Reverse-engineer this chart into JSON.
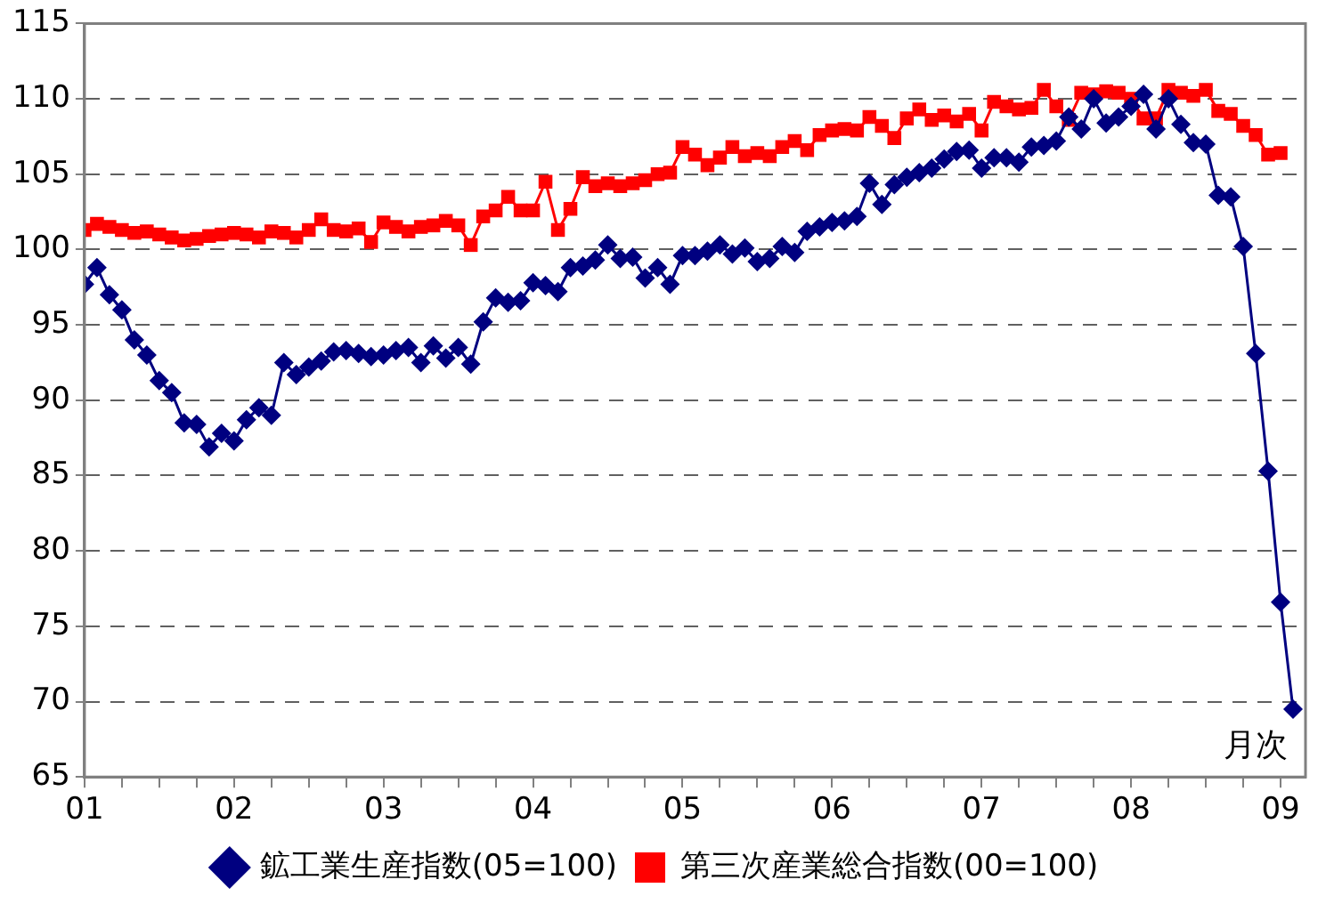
{
  "chart_data": {
    "type": "line",
    "annotations": [
      "月次"
    ],
    "xlim": [
      "2001-01",
      "2009-03"
    ],
    "xticks": [
      {
        "value": "2001-01",
        "label": "01"
      },
      {
        "value": "2001-04",
        "label": null
      },
      {
        "value": "2001-07",
        "label": null
      },
      {
        "value": "2001-10",
        "label": null
      },
      {
        "value": "2002-01",
        "label": "02"
      },
      {
        "value": "2002-04",
        "label": null
      },
      {
        "value": "2002-07",
        "label": null
      },
      {
        "value": "2002-10",
        "label": null
      },
      {
        "value": "2003-01",
        "label": "03"
      },
      {
        "value": "2003-04",
        "label": null
      },
      {
        "value": "2003-07",
        "label": null
      },
      {
        "value": "2003-10",
        "label": null
      },
      {
        "value": "2004-01",
        "label": "04"
      },
      {
        "value": "2004-04",
        "label": null
      },
      {
        "value": "2004-07",
        "label": null
      },
      {
        "value": "2004-10",
        "label": null
      },
      {
        "value": "2005-01",
        "label": "05"
      },
      {
        "value": "2005-04",
        "label": null
      },
      {
        "value": "2005-07",
        "label": null
      },
      {
        "value": "2005-10",
        "label": null
      },
      {
        "value": "2006-01",
        "label": "06"
      },
      {
        "value": "2006-04",
        "label": null
      },
      {
        "value": "2006-07",
        "label": null
      },
      {
        "value": "2006-10",
        "label": null
      },
      {
        "value": "2007-01",
        "label": "07"
      },
      {
        "value": "2007-04",
        "label": null
      },
      {
        "value": "2007-07",
        "label": null
      },
      {
        "value": "2007-10",
        "label": null
      },
      {
        "value": "2008-01",
        "label": "08"
      },
      {
        "value": "2008-04",
        "label": null
      },
      {
        "value": "2008-07",
        "label": null
      },
      {
        "value": "2008-10",
        "label": null
      },
      {
        "value": "2009-01",
        "label": "09"
      }
    ],
    "ylim": [
      65,
      115
    ],
    "yticks": [
      65,
      70,
      75,
      80,
      85,
      90,
      95,
      100,
      105,
      110,
      115
    ],
    "grid": "y",
    "legend": "bottom",
    "x": [
      "2001-01",
      "2001-02",
      "2001-03",
      "2001-04",
      "2001-05",
      "2001-06",
      "2001-07",
      "2001-08",
      "2001-09",
      "2001-10",
      "2001-11",
      "2001-12",
      "2002-01",
      "2002-02",
      "2002-03",
      "2002-04",
      "2002-05",
      "2002-06",
      "2002-07",
      "2002-08",
      "2002-09",
      "2002-10",
      "2002-11",
      "2002-12",
      "2003-01",
      "2003-02",
      "2003-03",
      "2003-04",
      "2003-05",
      "2003-06",
      "2003-07",
      "2003-08",
      "2003-09",
      "2003-10",
      "2003-11",
      "2003-12",
      "2004-01",
      "2004-02",
      "2004-03",
      "2004-04",
      "2004-05",
      "2004-06",
      "2004-07",
      "2004-08",
      "2004-09",
      "2004-10",
      "2004-11",
      "2004-12",
      "2005-01",
      "2005-02",
      "2005-03",
      "2005-04",
      "2005-05",
      "2005-06",
      "2005-07",
      "2005-08",
      "2005-09",
      "2005-10",
      "2005-11",
      "2005-12",
      "2006-01",
      "2006-02",
      "2006-03",
      "2006-04",
      "2006-05",
      "2006-06",
      "2006-07",
      "2006-08",
      "2006-09",
      "2006-10",
      "2006-11",
      "2006-12",
      "2007-01",
      "2007-02",
      "2007-03",
      "2007-04",
      "2007-05",
      "2007-06",
      "2007-07",
      "2007-08",
      "2007-09",
      "2007-10",
      "2007-11",
      "2007-12",
      "2008-01",
      "2008-02",
      "2008-03",
      "2008-04",
      "2008-05",
      "2008-06",
      "2008-07",
      "2008-08",
      "2008-09",
      "2008-10",
      "2008-11",
      "2008-12",
      "2009-01",
      "2009-02"
    ],
    "series": [
      {
        "name": "鉱工業生産指数(05=100)",
        "color": "#000080",
        "marker": "diamond",
        "values": [
          97.7,
          98.8,
          97.0,
          96.0,
          94.0,
          93.0,
          91.3,
          90.5,
          88.5,
          88.4,
          86.9,
          87.8,
          87.3,
          88.7,
          89.5,
          89.0,
          92.5,
          91.7,
          92.2,
          92.6,
          93.2,
          93.3,
          93.1,
          92.9,
          93.0,
          93.3,
          93.5,
          92.5,
          93.6,
          92.8,
          93.5,
          92.4,
          95.2,
          96.8,
          96.5,
          96.6,
          97.8,
          97.6,
          97.2,
          98.8,
          98.9,
          99.3,
          100.3,
          99.4,
          99.5,
          98.1,
          98.8,
          97.7,
          99.6,
          99.6,
          99.9,
          100.3,
          99.7,
          100.1,
          99.2,
          99.4,
          100.2,
          99.8,
          101.2,
          101.5,
          101.8,
          101.9,
          102.2,
          104.4,
          103.0,
          104.3,
          104.8,
          105.1,
          105.4,
          106.0,
          106.5,
          106.6,
          105.4,
          106.1,
          106.1,
          105.8,
          106.8,
          106.9,
          107.2,
          108.8,
          108.0,
          110.0,
          108.4,
          108.8,
          109.5,
          110.3,
          108.0,
          110.0,
          108.3,
          107.1,
          107.0,
          103.6,
          103.5,
          100.2,
          93.1,
          85.3,
          76.6,
          69.5
        ]
      },
      {
        "name": "第三次産業総合指数(00=100)",
        "color": "#ff0000",
        "marker": "square",
        "values": [
          101.3,
          101.7,
          101.5,
          101.3,
          101.1,
          101.2,
          101.0,
          100.8,
          100.6,
          100.7,
          100.9,
          101.0,
          101.1,
          101.0,
          100.8,
          101.2,
          101.1,
          100.8,
          101.3,
          102.0,
          101.3,
          101.2,
          101.4,
          100.5,
          101.8,
          101.5,
          101.2,
          101.5,
          101.6,
          101.9,
          101.6,
          100.3,
          102.2,
          102.6,
          103.5,
          102.6,
          102.6,
          104.5,
          101.3,
          102.7,
          104.8,
          104.2,
          104.4,
          104.2,
          104.4,
          104.6,
          105.0,
          105.1,
          106.8,
          106.3,
          105.6,
          106.1,
          106.8,
          106.2,
          106.4,
          106.2,
          106.8,
          107.2,
          106.6,
          107.6,
          107.9,
          108.0,
          107.9,
          108.8,
          108.2,
          107.4,
          108.7,
          109.3,
          108.6,
          108.9,
          108.5,
          109.0,
          107.9,
          109.8,
          109.5,
          109.3,
          109.4,
          110.6,
          109.5,
          108.6,
          110.4,
          110.3,
          110.5,
          110.4,
          110.0,
          108.7,
          108.7,
          110.6,
          110.4,
          110.2,
          110.6,
          109.2,
          109.0,
          108.2,
          107.6,
          106.3,
          106.4,
          null
        ]
      }
    ]
  }
}
